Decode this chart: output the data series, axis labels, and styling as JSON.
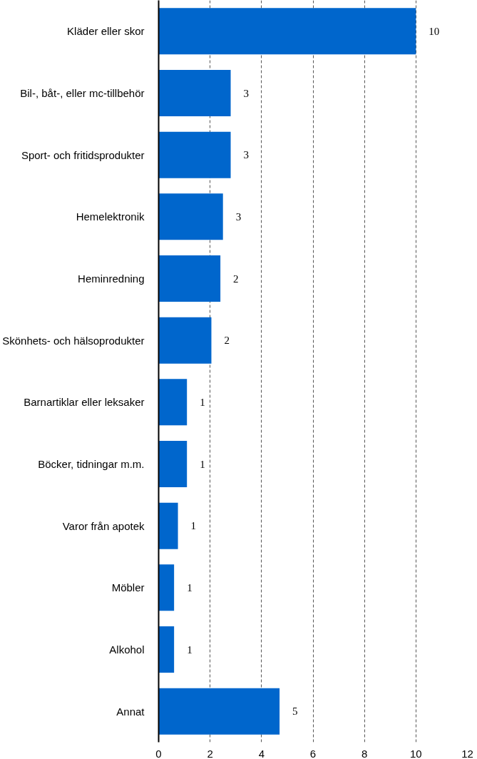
{
  "chart_data": {
    "type": "bar",
    "orientation": "horizontal",
    "categories": [
      "Kläder eller skor",
      "Bil-, båt-, eller mc-tillbehör",
      "Sport- och fritidsprodukter",
      "Hemelektronik",
      "Heminredning",
      "Skönhets- och hälsoprodukter",
      "Barnartiklar eller leksaker",
      "Böcker, tidningar m.m.",
      "Varor från apotek",
      "Möbler",
      "Alkohol",
      "Annat"
    ],
    "values": [
      10.0,
      2.8,
      2.8,
      2.5,
      2.4,
      2.05,
      1.1,
      1.1,
      0.75,
      0.6,
      0.6,
      4.7
    ],
    "value_labels": [
      "10",
      "3",
      "3",
      "3",
      "2",
      "2",
      "1",
      "1",
      "1",
      "1",
      "1",
      "5"
    ],
    "color": "#0066cc",
    "xlim": [
      0,
      12
    ],
    "xticks": [
      0,
      2,
      4,
      6,
      8,
      10,
      12
    ],
    "grid": "x"
  }
}
